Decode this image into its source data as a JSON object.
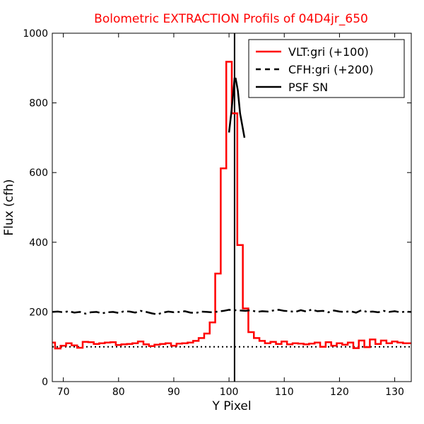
{
  "chart_data": {
    "type": "line",
    "title": "Bolometric EXTRACTION Profils of 04D4jr_650",
    "title_color": "#ff0000",
    "xlabel": "Y Pixel",
    "ylabel": "Flux (cfh)",
    "xlim": [
      68,
      133
    ],
    "ylim": [
      0,
      1000
    ],
    "x_ticks": [
      70,
      80,
      90,
      100,
      110,
      120,
      130
    ],
    "y_ticks": [
      0,
      200,
      400,
      600,
      800,
      1000
    ],
    "grid": false,
    "legend_position": "top-right",
    "series": [
      {
        "name": "VLT:gri (+100)",
        "color": "#ff0000",
        "style": "steps-mid",
        "x": [
          68,
          69,
          70,
          71,
          72,
          73,
          74,
          75,
          76,
          77,
          78,
          79,
          80,
          81,
          82,
          83,
          84,
          85,
          86,
          87,
          88,
          89,
          90,
          91,
          92,
          93,
          94,
          95,
          96,
          97,
          98,
          99,
          100,
          101,
          102,
          103,
          104,
          105,
          106,
          107,
          108,
          109,
          110,
          111,
          112,
          113,
          114,
          115,
          116,
          117,
          118,
          119,
          120,
          121,
          122,
          123,
          124,
          125,
          126,
          127,
          128,
          129,
          130,
          131,
          132,
          133
        ],
        "y": [
          112,
          95,
          103,
          110,
          104,
          97,
          114,
          113,
          108,
          110,
          112,
          113,
          105,
          107,
          108,
          110,
          115,
          107,
          102,
          106,
          108,
          110,
          103,
          109,
          110,
          112,
          117,
          125,
          138,
          170,
          310,
          612,
          918,
          770,
          392,
          210,
          142,
          125,
          117,
          110,
          114,
          108,
          115,
          107,
          110,
          109,
          107,
          109,
          112,
          100,
          113,
          103,
          110,
          106,
          112,
          96,
          118,
          99,
          121,
          108,
          118,
          110,
          115,
          112,
          110,
          110
        ]
      },
      {
        "name": "CFH:gri (+200)",
        "color": "#000000",
        "style": "dashdot",
        "x": [
          68,
          69,
          70,
          71,
          72,
          73,
          74,
          75,
          76,
          77,
          78,
          79,
          80,
          81,
          82,
          83,
          84,
          85,
          86,
          87,
          88,
          89,
          90,
          91,
          92,
          93,
          94,
          95,
          96,
          97,
          98,
          99,
          100,
          101,
          102,
          103,
          104,
          105,
          106,
          107,
          108,
          109,
          110,
          111,
          112,
          113,
          114,
          115,
          116,
          117,
          118,
          119,
          120,
          121,
          122,
          123,
          124,
          125,
          126,
          127,
          128,
          129,
          130,
          131,
          132,
          133
        ],
        "y": [
          200,
          201,
          199,
          202,
          198,
          200,
          195,
          199,
          200,
          196,
          199,
          200,
          197,
          202,
          201,
          198,
          203,
          200,
          196,
          193,
          198,
          201,
          199,
          200,
          202,
          198,
          197,
          201,
          200,
          199,
          201,
          203,
          206,
          205,
          204,
          203,
          205,
          200,
          202,
          201,
          204,
          206,
          203,
          202,
          200,
          205,
          201,
          207,
          202,
          203,
          199,
          204,
          201,
          200,
          202,
          198,
          205,
          200,
          201,
          199,
          203,
          200,
          202,
          199,
          201,
          200
        ]
      },
      {
        "name": "PSF SN",
        "color": "#000000",
        "style": "solid",
        "x": [
          100.0,
          100.4,
          100.8,
          101.0,
          101.2,
          101.6,
          102.0,
          102.4,
          102.8
        ],
        "y": [
          715,
          770,
          835,
          870,
          870,
          835,
          770,
          735,
          700
        ]
      }
    ],
    "reference_lines": [
      {
        "orientation": "horizontal",
        "value": 100,
        "style": "dotted",
        "color": "#000000"
      },
      {
        "orientation": "vertical",
        "value": 101,
        "style": "solid",
        "color": "#000000"
      }
    ]
  }
}
